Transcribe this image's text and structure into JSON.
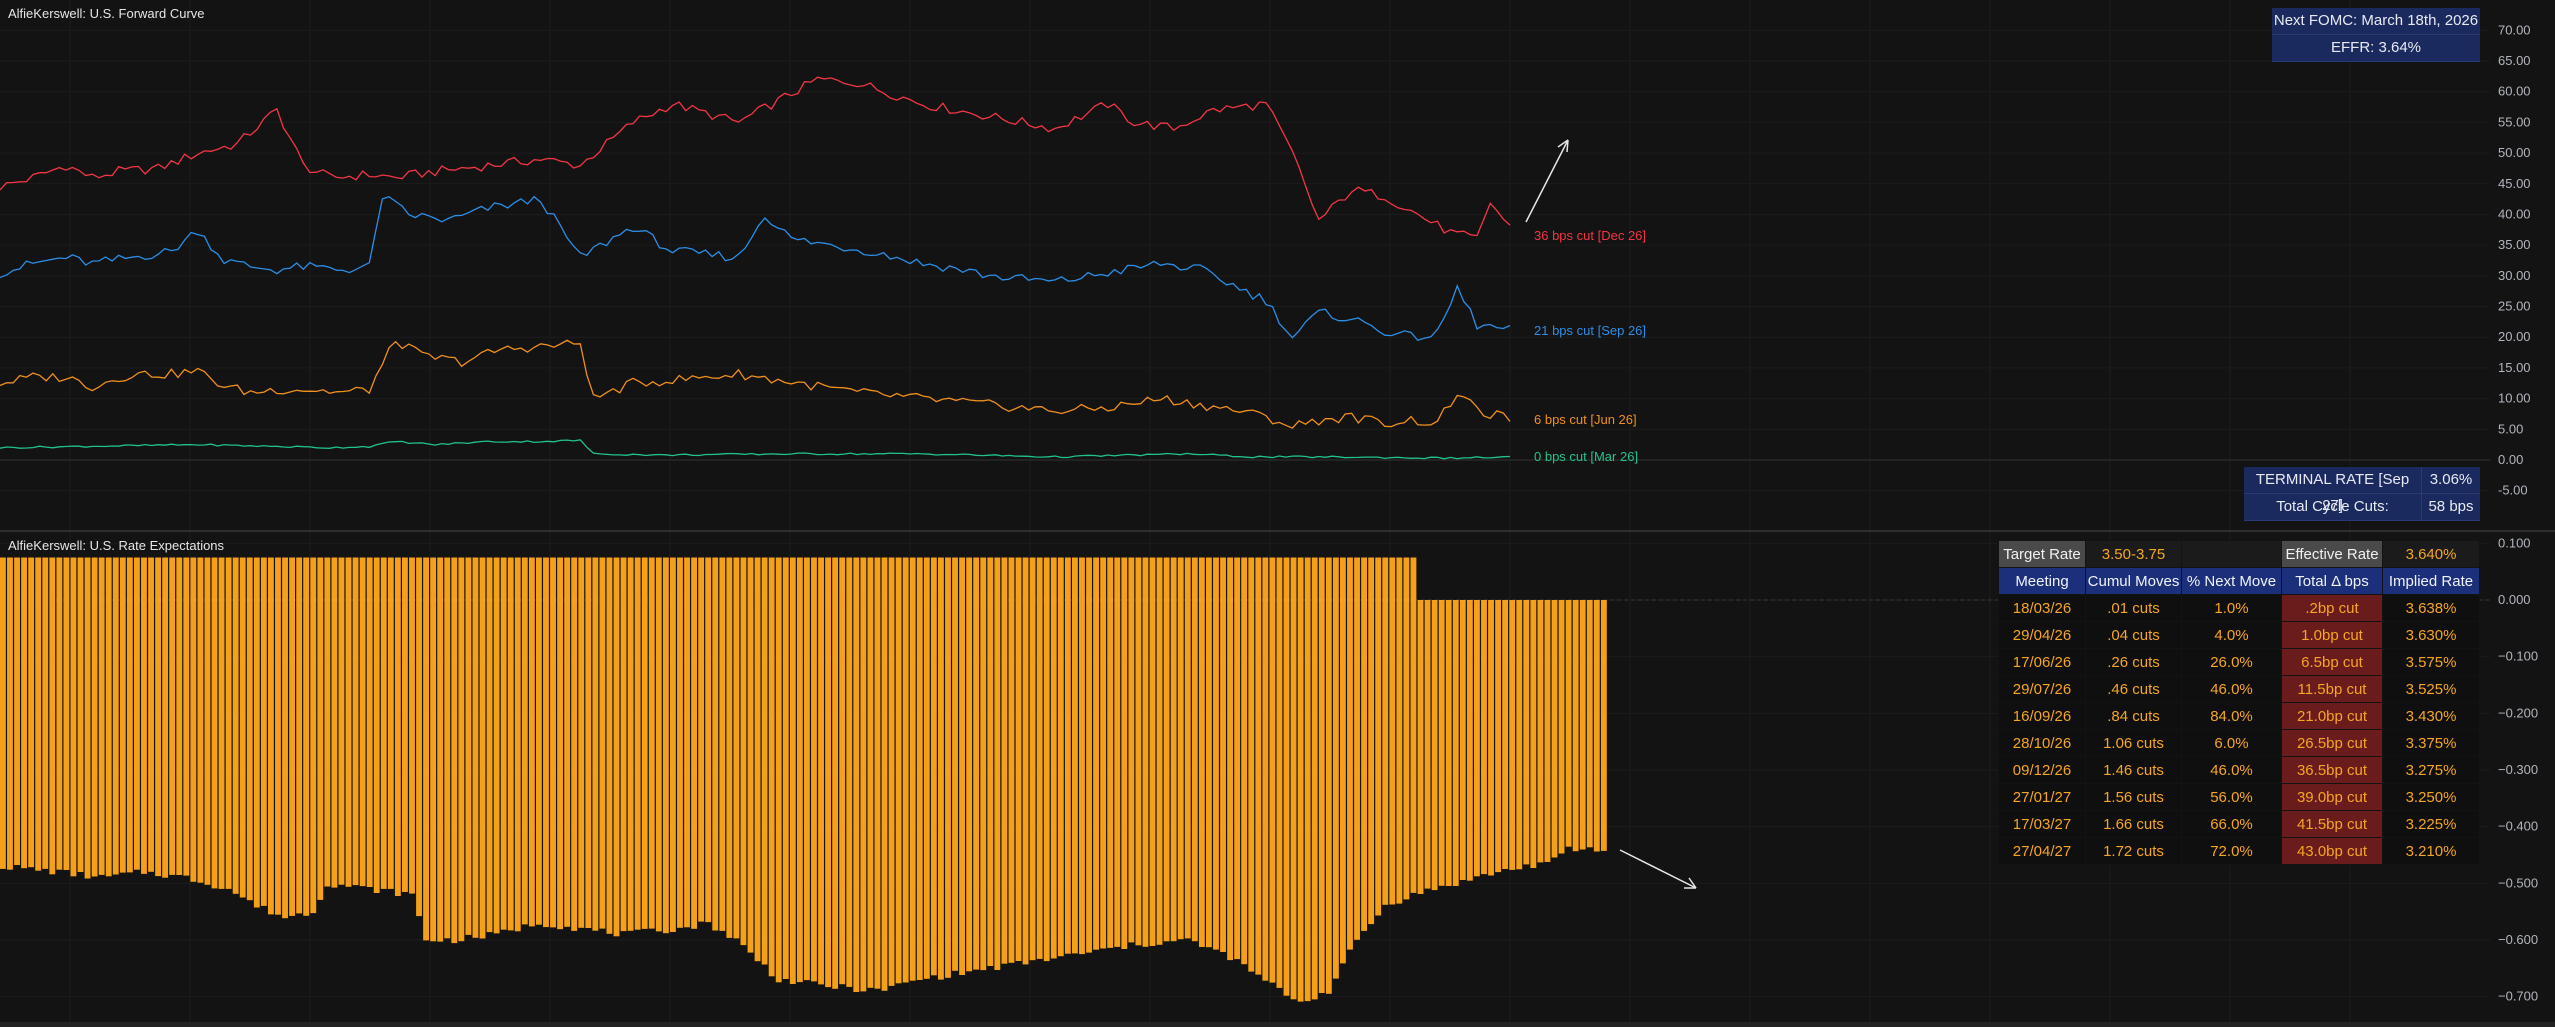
{
  "top_pane": {
    "title": "AlfieKerswell: U.S. Forward Curve",
    "fomc_box": {
      "next_fomc": "Next FOMC: March 18th, 2026",
      "effr": "EFFR: 3.64%"
    },
    "terminal_box": {
      "terminal_label": "TERMINAL RATE [Sep 27]",
      "terminal_value": "3.06%",
      "cycle_label": "Total Cycle Cuts:",
      "cycle_value": "58 bps"
    }
  },
  "bottom_pane": {
    "title": "AlfieKerswell: U.S. Rate Expectations"
  },
  "colors": {
    "dec26": "#f23645",
    "sep26": "#2c8ee6",
    "jun26": "#f0901c",
    "mar26": "#22c38a",
    "bars": "#f5a01a",
    "annotation_arrow": "#e6e6e6"
  },
  "rate_table": {
    "target_label": "Target Rate",
    "target_value": "3.50-3.75",
    "effective_label": "Effective Rate",
    "effective_value": "3.640%",
    "headers": [
      "Meeting",
      "Cumul Moves",
      "% Next Move",
      "Total Δ bps",
      "Implied Rate"
    ],
    "rows": [
      [
        "18/03/26",
        ".01 cuts",
        "1.0%",
        ".2bp cut",
        "3.638%"
      ],
      [
        "29/04/26",
        ".04 cuts",
        "4.0%",
        "1.0bp cut",
        "3.630%"
      ],
      [
        "17/06/26",
        ".26 cuts",
        "26.0%",
        "6.5bp cut",
        "3.575%"
      ],
      [
        "29/07/26",
        ".46 cuts",
        "46.0%",
        "11.5bp cut",
        "3.525%"
      ],
      [
        "16/09/26",
        ".84 cuts",
        "84.0%",
        "21.0bp cut",
        "3.430%"
      ],
      [
        "28/10/26",
        "1.06 cuts",
        "6.0%",
        "26.5bp cut",
        "3.375%"
      ],
      [
        "09/12/26",
        "1.46 cuts",
        "46.0%",
        "36.5bp cut",
        "3.275%"
      ],
      [
        "27/01/27",
        "1.56 cuts",
        "56.0%",
        "39.0bp cut",
        "3.250%"
      ],
      [
        "17/03/27",
        "1.66 cuts",
        "66.0%",
        "41.5bp cut",
        "3.225%"
      ],
      [
        "27/04/27",
        "1.72 cuts",
        "72.0%",
        "43.0bp cut",
        "3.210%"
      ]
    ]
  },
  "chart_data": [
    {
      "type": "line",
      "ylim": [
        -7.5,
        72.5
      ],
      "yticks": [
        "70.00",
        "65.00",
        "60.00",
        "55.00",
        "50.00",
        "45.00",
        "40.00",
        "35.00",
        "30.00",
        "25.00",
        "20.00",
        "15.00",
        "10.00",
        "5.00",
        "0.00",
        "-5.00"
      ],
      "n_points": 230,
      "series": [
        {
          "name": "36 bps cut [Dec 26]",
          "colorKey": "dec26",
          "anchors": [
            [
              0,
              44.5
            ],
            [
              5,
              46
            ],
            [
              10,
              48
            ],
            [
              14,
              46
            ],
            [
              18,
              47
            ],
            [
              24,
              47.5
            ],
            [
              30,
              50
            ],
            [
              36,
              51.5
            ],
            [
              42,
              57
            ],
            [
              46,
              48
            ],
            [
              50,
              46
            ],
            [
              56,
              46.5
            ],
            [
              60,
              46
            ],
            [
              66,
              47
            ],
            [
              74,
              48
            ],
            [
              82,
              49
            ],
            [
              88,
              48
            ],
            [
              96,
              55
            ],
            [
              102,
              58
            ],
            [
              112,
              55
            ],
            [
              124,
              62
            ],
            [
              130,
              61.5
            ],
            [
              140,
              58
            ],
            [
              150,
              56
            ],
            [
              160,
              54
            ],
            [
              168,
              58
            ],
            [
              172,
              55
            ],
            [
              178,
              54
            ],
            [
              184,
              57
            ],
            [
              192,
              58
            ],
            [
              196,
              50
            ],
            [
              200,
              39
            ],
            [
              205,
              44
            ],
            [
              210,
              43
            ],
            [
              215,
              40
            ],
            [
              220,
              37
            ],
            [
              224,
              36
            ],
            [
              226,
              42
            ],
            [
              230,
              36.5
            ]
          ],
          "end_label_value": 36.5
        },
        {
          "name": "21 bps cut [Sep 26]",
          "colorKey": "sep26",
          "anchors": [
            [
              0,
              30.5
            ],
            [
              5,
              32
            ],
            [
              10,
              33
            ],
            [
              14,
              32
            ],
            [
              20,
              33
            ],
            [
              26,
              34
            ],
            [
              30,
              37.5
            ],
            [
              34,
              32.5
            ],
            [
              38,
              31.5
            ],
            [
              42,
              31
            ],
            [
              46,
              31.5
            ],
            [
              52,
              31
            ],
            [
              56,
              31.5
            ],
            [
              58,
              43
            ],
            [
              62,
              40
            ],
            [
              68,
              39
            ],
            [
              74,
              41
            ],
            [
              82,
              42.5
            ],
            [
              88,
              33
            ],
            [
              96,
              38
            ],
            [
              102,
              34
            ],
            [
              112,
              33
            ],
            [
              116,
              40
            ],
            [
              120,
              36
            ],
            [
              126,
              35
            ],
            [
              132,
              34
            ],
            [
              140,
              32
            ],
            [
              146,
              31
            ],
            [
              150,
              30
            ],
            [
              160,
              29
            ],
            [
              168,
              30.5
            ],
            [
              176,
              32
            ],
            [
              182,
              31
            ],
            [
              188,
              28
            ],
            [
              192,
              26
            ],
            [
              196,
              20
            ],
            [
              200,
              24
            ],
            [
              205,
              23
            ],
            [
              210,
              21
            ],
            [
              214,
              20
            ],
            [
              218,
              20.5
            ],
            [
              221,
              28
            ],
            [
              224,
              22
            ],
            [
              230,
              21
            ]
          ],
          "end_label_value": 21
        },
        {
          "name": "6 bps cut [Jun 26]",
          "colorKey": "jun26",
          "anchors": [
            [
              0,
              12.5
            ],
            [
              5,
              13.5
            ],
            [
              10,
              13.5
            ],
            [
              14,
              12
            ],
            [
              20,
              14
            ],
            [
              26,
              14
            ],
            [
              30,
              14.5
            ],
            [
              34,
              12
            ],
            [
              38,
              11
            ],
            [
              42,
              11.5
            ],
            [
              46,
              11.5
            ],
            [
              52,
              11
            ],
            [
              56,
              11.5
            ],
            [
              60,
              19.5
            ],
            [
              64,
              17
            ],
            [
              70,
              16
            ],
            [
              76,
              18
            ],
            [
              82,
              18.5
            ],
            [
              88,
              19
            ],
            [
              90,
              10
            ],
            [
              96,
              12.5
            ],
            [
              102,
              13
            ],
            [
              112,
              14
            ],
            [
              124,
              12
            ],
            [
              130,
              11
            ],
            [
              140,
              10
            ],
            [
              150,
              9
            ],
            [
              160,
              8
            ],
            [
              168,
              8.5
            ],
            [
              176,
              10
            ],
            [
              182,
              9
            ],
            [
              188,
              8
            ],
            [
              192,
              7
            ],
            [
              196,
              5.5
            ],
            [
              200,
              6.5
            ],
            [
              205,
              7
            ],
            [
              210,
              6
            ],
            [
              214,
              6.5
            ],
            [
              218,
              6
            ],
            [
              221,
              11
            ],
            [
              224,
              8
            ],
            [
              230,
              6.5
            ]
          ],
          "end_label_value": 6.5
        },
        {
          "name": "0 bps cut [Mar 26]",
          "colorKey": "mar26",
          "anchors": [
            [
              0,
              2
            ],
            [
              30,
              2.5
            ],
            [
              50,
              2
            ],
            [
              56,
              2.2
            ],
            [
              60,
              3
            ],
            [
              66,
              2.5
            ],
            [
              74,
              3
            ],
            [
              82,
              3
            ],
            [
              88,
              3.2
            ],
            [
              90,
              1
            ],
            [
              100,
              0.8
            ],
            [
              120,
              1
            ],
            [
              140,
              1
            ],
            [
              160,
              0.5
            ],
            [
              180,
              1
            ],
            [
              190,
              0.5
            ],
            [
              200,
              0.5
            ],
            [
              220,
              0.3
            ],
            [
              230,
              0.5
            ]
          ],
          "end_label_value": 0.5
        }
      ],
      "annotation": "arrow up"
    },
    {
      "type": "bar",
      "ylim": [
        -0.75,
        0.12
      ],
      "yticks": [
        "0.100",
        "0.000",
        "−0.100",
        "−0.200",
        "−0.300",
        "−0.400",
        "−0.500",
        "−0.600",
        "−0.700"
      ],
      "n_bars": 228,
      "bar_top_anchors": [
        [
          0,
          0.075
        ],
        [
          200,
          0.075
        ],
        [
          201,
          0.0
        ],
        [
          228,
          0.0
        ]
      ],
      "bar_bottom_anchors": [
        [
          0,
          -0.47
        ],
        [
          8,
          -0.48
        ],
        [
          14,
          -0.49
        ],
        [
          20,
          -0.48
        ],
        [
          26,
          -0.49
        ],
        [
          32,
          -0.51
        ],
        [
          36,
          -0.54
        ],
        [
          40,
          -0.56
        ],
        [
          44,
          -0.55
        ],
        [
          46,
          -0.5
        ],
        [
          52,
          -0.51
        ],
        [
          58,
          -0.52
        ],
        [
          60,
          -0.6
        ],
        [
          64,
          -0.6
        ],
        [
          70,
          -0.59
        ],
        [
          76,
          -0.57
        ],
        [
          82,
          -0.58
        ],
        [
          88,
          -0.59
        ],
        [
          96,
          -0.58
        ],
        [
          100,
          -0.57
        ],
        [
          104,
          -0.6
        ],
        [
          110,
          -0.67
        ],
        [
          116,
          -0.68
        ],
        [
          124,
          -0.69
        ],
        [
          130,
          -0.67
        ],
        [
          140,
          -0.65
        ],
        [
          150,
          -0.63
        ],
        [
          160,
          -0.61
        ],
        [
          168,
          -0.6
        ],
        [
          174,
          -0.63
        ],
        [
          180,
          -0.68
        ],
        [
          184,
          -0.71
        ],
        [
          188,
          -0.69
        ],
        [
          192,
          -0.6
        ],
        [
          196,
          -0.54
        ],
        [
          200,
          -0.52
        ],
        [
          206,
          -0.5
        ],
        [
          212,
          -0.48
        ],
        [
          216,
          -0.47
        ],
        [
          220,
          -0.46
        ],
        [
          222,
          -0.44
        ],
        [
          226,
          -0.44
        ],
        [
          228,
          -0.45
        ]
      ],
      "annotation": "arrow down"
    }
  ]
}
